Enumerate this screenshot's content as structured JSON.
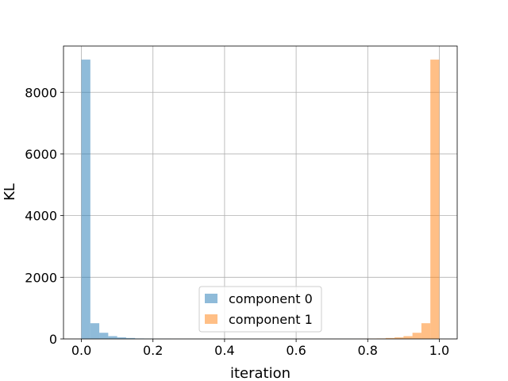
{
  "chart_data": {
    "type": "bar",
    "title": "",
    "xlabel": "iteration",
    "ylabel": "KL",
    "xlim": [
      -0.05,
      1.05
    ],
    "ylim": [
      0,
      9500
    ],
    "xticks": [
      0.0,
      0.2,
      0.4,
      0.6,
      0.8,
      1.0
    ],
    "xtick_labels": [
      "0.0",
      "0.2",
      "0.4",
      "0.6",
      "0.8",
      "1.0"
    ],
    "yticks": [
      0,
      2000,
      4000,
      6000,
      8000
    ],
    "ytick_labels": [
      "0",
      "2000",
      "4000",
      "6000",
      "8000"
    ],
    "grid": true,
    "legend_position": "bottom-center",
    "bin_width": 0.025,
    "series": [
      {
        "name": "component 0",
        "color": "#1f77b4",
        "alpha": 0.5,
        "bin_starts": [
          0.0,
          0.025,
          0.05,
          0.075,
          0.1,
          0.125,
          0.15,
          0.175,
          0.2,
          0.225
        ],
        "values": [
          9060,
          510,
          200,
          90,
          50,
          30,
          15,
          10,
          5,
          3
        ]
      },
      {
        "name": "component 1",
        "color": "#ff7f0e",
        "alpha": 0.5,
        "bin_starts": [
          0.775,
          0.8,
          0.825,
          0.85,
          0.875,
          0.9,
          0.925,
          0.95,
          0.975
        ],
        "values": [
          5,
          10,
          15,
          30,
          50,
          90,
          200,
          510,
          9060
        ]
      }
    ]
  }
}
